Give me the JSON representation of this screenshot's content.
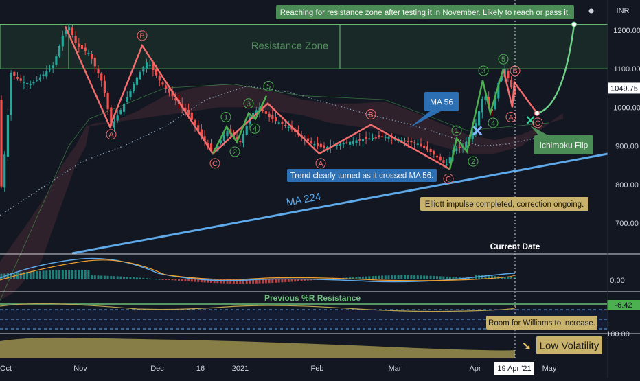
{
  "chart_data": {
    "type": "candlestick",
    "currency": "INR",
    "y_ticks": [
      1200,
      1100,
      1000,
      900,
      800,
      700
    ],
    "y_tick_labels": [
      "1200.00",
      "1100.00",
      "1000.00",
      "900.00",
      "800.00",
      "700.00"
    ],
    "ylim": [
      620,
      1260
    ],
    "price_tag": "1049.75",
    "x_labels": [
      "Oct",
      "Nov",
      "Dec",
      "16",
      "2021",
      "Feb",
      "Mar",
      "Apr",
      "May"
    ],
    "current_date_label": "19 Apr '21",
    "current_date_caption": "Current Date",
    "resistance_zone": {
      "label": "Resistance Zone",
      "from": 1100,
      "to": 1215
    },
    "ma_labels": {
      "ma56": "MA 56",
      "ma224": "MA 224"
    },
    "annotations": {
      "top": "Reaching for resistance zone after testing it in November. Likely to reach or pass it.",
      "trend": "Trend clearly turned as it crossed MA 56.",
      "elliott": "Elliott impulse completed, correction ongoing.",
      "ichimoku": "Ichimoku Flip",
      "williams_room": "Room for Williams to increase.",
      "volatility": "Low Volatility",
      "wr_resistance": "Previous %R Resistance"
    },
    "wave_labels": [
      "A",
      "B",
      "C",
      "1",
      "2",
      "3",
      "4",
      "5"
    ],
    "macd_tick": "0.00",
    "williams_value": "-6.42",
    "volatility_tick": "100.00",
    "colors": {
      "up": "#26a69a",
      "down": "#ef5350",
      "wave": "#f26d6d",
      "impulse": "#4caf50",
      "ma224": "#5da9e9",
      "resistance": "#6cc17a",
      "annot_yellow": "#c9b26b",
      "annot_blue": "#2c6fb3",
      "annot_green": "#4b8b55",
      "volatility": "#9c8f4c"
    }
  }
}
